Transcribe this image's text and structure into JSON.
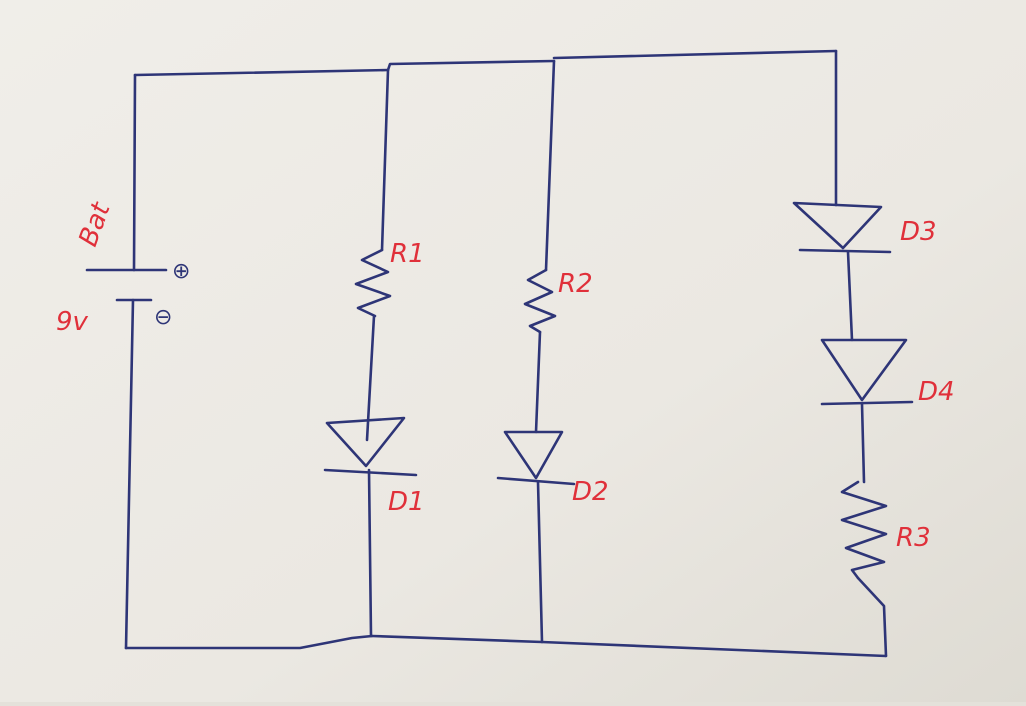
{
  "colors": {
    "paper": "#ebe8e2",
    "ink": "#2e3577",
    "label": "#e0303a"
  },
  "battery": {
    "name": "Bat",
    "voltage": "9v",
    "plus": "⊕",
    "minus": "⊖"
  },
  "labels": {
    "r1": "R1",
    "r2": "R2",
    "r3": "R3",
    "d1": "D1",
    "d2": "D2",
    "d3": "D3",
    "d4": "D4"
  }
}
